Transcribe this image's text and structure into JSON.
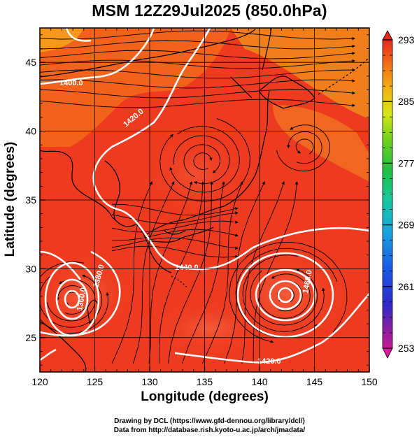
{
  "title": "MSM 12Z29Jul2025 (850.0hPa)",
  "xlabel": "Longitude (degrees)",
  "ylabel": "Latitude  (degrees)",
  "credits": {
    "line1": "Drawing by DCL (https://www.gfd-dennou.org/library/dcl/)",
    "line2": "Data from http://database.rish.kyoto-u.ac.jp/arch/jmadata/"
  },
  "chart_data": {
    "type": "heatmap",
    "variable_shading": "temperature (K)",
    "xlim": [
      120,
      150
    ],
    "ylim": [
      22.5,
      47.5
    ],
    "x_ticks": [
      "120",
      "125",
      "130",
      "135",
      "140",
      "145",
      "150"
    ],
    "y_ticks": [
      "25",
      "30",
      "35",
      "40",
      "45"
    ],
    "grid": true,
    "colorbar": {
      "min": 253,
      "max": 293,
      "labels": [
        "293",
        "285",
        "277",
        "269",
        "261",
        "253"
      ],
      "label_values": [
        293,
        285,
        277,
        269,
        261,
        253
      ]
    },
    "contours": [
      {
        "label": "1400.0",
        "value": 1400.0
      },
      {
        "label": "1420.0",
        "value": 1420.0
      },
      {
        "label": "1440.0",
        "value": 1440.0
      },
      {
        "label": "1460.0",
        "value": 1460.0
      },
      {
        "label": "1420.0",
        "value": 1420.0
      },
      {
        "label": "1360.0",
        "value": 1360.0
      },
      {
        "label": "1380.0",
        "value": 1380.0
      }
    ]
  },
  "colors": {
    "field_main": "#ee3b1f",
    "field_warm": "#f05a3c",
    "field_north": "#f27a14",
    "contour": "#ffffff",
    "streamline": "#000000"
  }
}
